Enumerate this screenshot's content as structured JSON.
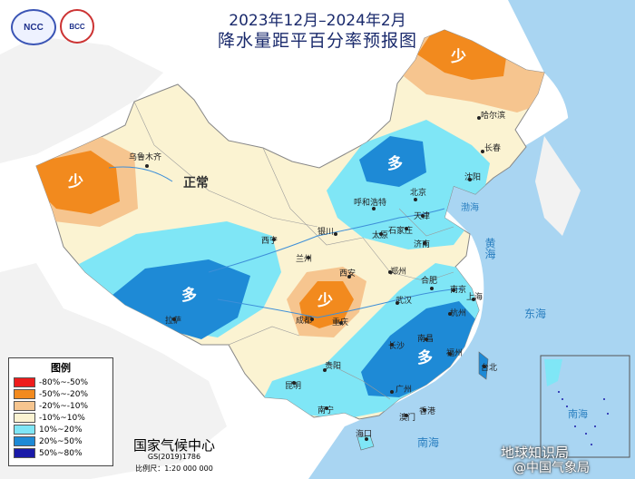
{
  "title": {
    "line1": "2023年12月–2024年2月",
    "line2": "降水量距平百分率预报图"
  },
  "logos": {
    "ncc": "NCC",
    "bcc": "BCC"
  },
  "legend": {
    "title": "图例",
    "items": [
      {
        "label": "-80%~-50%",
        "color": "#ee1c1c"
      },
      {
        "label": "-50%~-20%",
        "color": "#f28a1e"
      },
      {
        "label": "-20%~-10%",
        "color": "#f6c58f"
      },
      {
        "label": "-10%~10%",
        "color": "#fbf3d2"
      },
      {
        "label": "10%~20%",
        "color": "#7fe6f6"
      },
      {
        "label": "20%~50%",
        "color": "#1e8ad6"
      },
      {
        "label": "50%~80%",
        "color": "#1a1aa8"
      }
    ]
  },
  "region_labels": {
    "few_ne": "少",
    "few_nw": "少",
    "few_sc": "少",
    "normal": "正常",
    "more_north": "多",
    "more_tibet": "多",
    "more_south": "多"
  },
  "cities": {
    "urumqi": "乌鲁木齐",
    "harbin": "哈尔滨",
    "changchun": "长春",
    "shenyang": "沈阳",
    "beijing": "北京",
    "tianjin": "天津",
    "hohhot": "呼和浩特",
    "shijiazhuang": "石家庄",
    "taiyuan": "太原",
    "jinan": "济南",
    "yinchuan": "银川",
    "xining": "西宁",
    "lanzhou": "兰州",
    "xian": "西安",
    "zhengzhou": "郑州",
    "hefei": "合肥",
    "nanjing": "南京",
    "shanghai": "上海",
    "wuhan": "武汉",
    "hangzhou": "杭州",
    "chengdu": "成都",
    "chongqing": "重庆",
    "lhasa": "拉萨",
    "changsha": "长沙",
    "nanchang": "南昌",
    "fuzhou": "福州",
    "guiyang": "贵阳",
    "kunming": "昆明",
    "taibei": "台北",
    "guangzhou": "广州",
    "nanning": "南宁",
    "hongkong": "香港",
    "macao": "澳门",
    "haikou": "海口"
  },
  "seas": {
    "bohai": "渤海",
    "yellow_sea": "黄海",
    "east_sea": "东海",
    "south_sea": "南海",
    "inset_south_sea": "南海"
  },
  "footer": {
    "org": "国家气候中心",
    "code": "GS(2019)1786",
    "scale": "比例尺：1:20 000 000"
  },
  "watermark": {
    "line1": "地球知识局",
    "line2": "@中国气象局"
  }
}
